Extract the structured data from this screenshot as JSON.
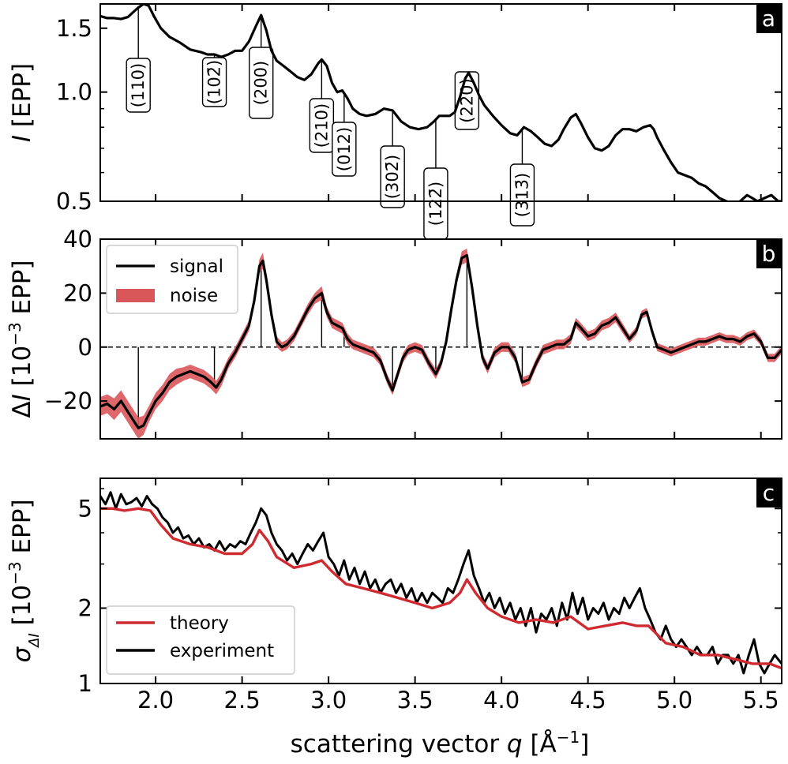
{
  "chart_data": [
    {
      "panel": "a",
      "type": "line",
      "yscale": "log",
      "xlim": [
        1.68,
        5.62
      ],
      "ylim": [
        0.5,
        1.75
      ],
      "yticks": [
        0.5,
        1.0,
        1.5
      ],
      "ytick_labels": [
        "0.5",
        "1.0",
        "1.5"
      ],
      "ylabel_italic": "I",
      "ylabel_rest": " [EPP]",
      "series": [
        {
          "name": "intensity",
          "color": "#000000",
          "x": [
            1.68,
            1.72,
            1.76,
            1.8,
            1.84,
            1.87,
            1.9,
            1.93,
            1.96,
            1.99,
            2.03,
            2.08,
            2.14,
            2.2,
            2.26,
            2.3,
            2.34,
            2.38,
            2.42,
            2.46,
            2.5,
            2.54,
            2.58,
            2.61,
            2.64,
            2.67,
            2.7,
            2.74,
            2.78,
            2.82,
            2.86,
            2.9,
            2.94,
            2.96,
            2.99,
            3.02,
            3.05,
            3.08,
            3.11,
            3.14,
            3.18,
            3.22,
            3.27,
            3.32,
            3.37,
            3.42,
            3.47,
            3.52,
            3.57,
            3.61,
            3.64,
            3.67,
            3.7,
            3.73,
            3.76,
            3.79,
            3.81,
            3.84,
            3.87,
            3.9,
            3.95,
            4.0,
            4.05,
            4.09,
            4.13,
            4.17,
            4.21,
            4.25,
            4.29,
            4.33,
            4.36,
            4.4,
            4.43,
            4.46,
            4.5,
            4.54,
            4.58,
            4.62,
            4.66,
            4.7,
            4.74,
            4.78,
            4.82,
            4.86,
            4.88,
            4.9,
            4.94,
            4.98,
            5.02,
            5.06,
            5.1,
            5.14,
            5.18,
            5.22,
            5.26,
            5.3,
            5.34,
            5.38,
            5.42,
            5.45,
            5.48,
            5.52,
            5.56,
            5.6,
            5.62
          ],
          "y": [
            1.62,
            1.6,
            1.6,
            1.59,
            1.61,
            1.66,
            1.71,
            1.75,
            1.73,
            1.62,
            1.5,
            1.42,
            1.37,
            1.31,
            1.29,
            1.27,
            1.27,
            1.25,
            1.27,
            1.3,
            1.3,
            1.38,
            1.52,
            1.63,
            1.48,
            1.3,
            1.22,
            1.18,
            1.14,
            1.1,
            1.08,
            1.12,
            1.2,
            1.23,
            1.18,
            1.06,
            1.0,
            1.01,
            0.96,
            0.9,
            0.87,
            0.86,
            0.87,
            0.9,
            0.89,
            0.83,
            0.8,
            0.79,
            0.8,
            0.83,
            0.86,
            0.86,
            0.86,
            0.88,
            0.97,
            1.09,
            1.13,
            1.06,
            0.98,
            0.92,
            0.86,
            0.81,
            0.77,
            0.76,
            0.8,
            0.78,
            0.75,
            0.72,
            0.71,
            0.74,
            0.79,
            0.85,
            0.87,
            0.82,
            0.75,
            0.7,
            0.69,
            0.71,
            0.76,
            0.79,
            0.79,
            0.78,
            0.8,
            0.81,
            0.79,
            0.75,
            0.69,
            0.64,
            0.6,
            0.59,
            0.58,
            0.56,
            0.55,
            0.53,
            0.51,
            0.5,
            0.49,
            0.5,
            0.52,
            0.51,
            0.5,
            0.51,
            0.52,
            0.5,
            0.5
          ]
        }
      ],
      "peaks": [
        {
          "label": "(110)",
          "x": 1.9
        },
        {
          "label": "(102̄)",
          "x": 2.34
        },
        {
          "label": "(200)",
          "x": 2.61
        },
        {
          "label": "(210)",
          "x": 2.96
        },
        {
          "label": "(012)",
          "x": 3.09
        },
        {
          "label": "(302̄)",
          "x": 3.37
        },
        {
          "label": "(122̄)",
          "x": 3.62
        },
        {
          "label": "(220)",
          "x": 3.8
        },
        {
          "label": "(313̄)",
          "x": 4.12
        }
      ],
      "panel_letter": "a"
    },
    {
      "panel": "b",
      "type": "line",
      "xlim": [
        1.68,
        5.62
      ],
      "ylim": [
        -34,
        40
      ],
      "yticks": [
        -20,
        0,
        20,
        40
      ],
      "ytick_labels": [
        "−20",
        "0",
        "20",
        "40"
      ],
      "ylabel_italic": "I",
      "ylabel_pre": "Δ",
      "ylabel_rest": " [10",
      "ylabel_sup": "−3",
      "ylabel_end": " EPP]",
      "zero_line": "dashed",
      "series": [
        {
          "name": "signal",
          "color": "#000000",
          "x": [
            1.68,
            1.72,
            1.76,
            1.8,
            1.84,
            1.88,
            1.9,
            1.93,
            1.96,
            2.0,
            2.04,
            2.08,
            2.12,
            2.16,
            2.2,
            2.24,
            2.28,
            2.32,
            2.35,
            2.38,
            2.42,
            2.46,
            2.5,
            2.54,
            2.57,
            2.6,
            2.62,
            2.64,
            2.67,
            2.7,
            2.73,
            2.76,
            2.8,
            2.84,
            2.88,
            2.92,
            2.96,
            2.99,
            3.02,
            3.05,
            3.08,
            3.11,
            3.14,
            3.18,
            3.22,
            3.26,
            3.3,
            3.34,
            3.37,
            3.4,
            3.43,
            3.46,
            3.5,
            3.54,
            3.58,
            3.62,
            3.65,
            3.68,
            3.71,
            3.74,
            3.77,
            3.8,
            3.83,
            3.86,
            3.89,
            3.92,
            3.96,
            4.0,
            4.04,
            4.08,
            4.12,
            4.16,
            4.2,
            4.24,
            4.28,
            4.32,
            4.36,
            4.4,
            4.43,
            4.46,
            4.5,
            4.54,
            4.58,
            4.62,
            4.66,
            4.7,
            4.74,
            4.78,
            4.81,
            4.84,
            4.87,
            4.9,
            4.94,
            4.98,
            5.02,
            5.06,
            5.1,
            5.14,
            5.18,
            5.22,
            5.26,
            5.3,
            5.34,
            5.38,
            5.42,
            5.46,
            5.5,
            5.54,
            5.58,
            5.62
          ],
          "y": [
            -22,
            -21,
            -23,
            -20,
            -24,
            -28,
            -30,
            -29,
            -25,
            -20,
            -17,
            -13,
            -11,
            -10,
            -9,
            -10,
            -11,
            -13,
            -15,
            -12,
            -6,
            -2,
            3,
            8,
            17,
            30,
            32,
            25,
            12,
            2,
            0,
            1,
            4,
            9,
            14,
            18,
            20,
            13,
            9,
            8,
            7,
            3,
            1,
            0,
            -1,
            -2,
            -5,
            -12,
            -16,
            -10,
            -4,
            -1,
            0,
            -1,
            -6,
            -10,
            -6,
            2,
            14,
            25,
            33,
            34,
            22,
            8,
            -4,
            -8,
            -2,
            0,
            0,
            -4,
            -13,
            -12,
            -6,
            -1,
            0,
            1,
            1,
            3,
            9,
            7,
            4,
            5,
            8,
            9,
            11,
            7,
            3,
            6,
            12,
            13,
            6,
            0,
            -1,
            -2,
            -1,
            0,
            1,
            2,
            2,
            3,
            4,
            3,
            3,
            2,
            4,
            5,
            2,
            -4,
            -4,
            -1
          ]
        }
      ],
      "noise_halfwidth": [
        3.5,
        3.5,
        4,
        4,
        4,
        4,
        4,
        3.5,
        3,
        3,
        3,
        3,
        3,
        2.5,
        2.5,
        2.5,
        2.5,
        2.5,
        2.5,
        2.5,
        2,
        2,
        2,
        2,
        2,
        2.5,
        3,
        2.5,
        2,
        2,
        1.8,
        1.8,
        1.8,
        1.8,
        2,
        2,
        2.5,
        2,
        2,
        2,
        2,
        2,
        1.8,
        1.8,
        1.8,
        1.8,
        1.8,
        1.8,
        1.8,
        1.8,
        1.8,
        1.8,
        1.8,
        1.8,
        1.8,
        1.8,
        1.8,
        1.8,
        1.8,
        2,
        2.5,
        2.5,
        2,
        1.8,
        1.8,
        1.8,
        1.8,
        1.8,
        1.8,
        1.8,
        1.8,
        1.8,
        1.8,
        1.8,
        1.8,
        1.8,
        1.8,
        1.8,
        1.8,
        1.8,
        1.8,
        1.8,
        1.8,
        1.8,
        1.8,
        1.8,
        1.5,
        1.5,
        1.5,
        1.5,
        1.5,
        1.5,
        1.5,
        1.5,
        1.5,
        1.5,
        1.5,
        1.5,
        1.5,
        1.5,
        1.5,
        1.5,
        1.5,
        1.5,
        1.5,
        1.5,
        1.5,
        1.5,
        1.5,
        1.5
      ],
      "noise_color": "#d9575b",
      "stems": [
        {
          "x": 1.9,
          "y": -30
        },
        {
          "x": 2.34,
          "y": -15
        },
        {
          "x": 2.61,
          "y": 32
        },
        {
          "x": 2.96,
          "y": 20
        },
        {
          "x": 3.09,
          "y": 7
        },
        {
          "x": 3.37,
          "y": -16
        },
        {
          "x": 3.62,
          "y": -10
        },
        {
          "x": 3.8,
          "y": 34
        },
        {
          "x": 4.12,
          "y": -13
        }
      ],
      "legend": {
        "placement": "upper-left",
        "entries": [
          "signal",
          "noise"
        ]
      },
      "panel_letter": "b"
    },
    {
      "panel": "c",
      "type": "line",
      "yscale": "log",
      "xlim": [
        1.68,
        5.62
      ],
      "ylim": [
        1.0,
        6.6
      ],
      "yticks": [
        1,
        2,
        5
      ],
      "ytick_labels": [
        "1",
        "2",
        "5"
      ],
      "ylabel_sigma": "σ",
      "ylabel_sub": "ΔI",
      "ylabel_rest": " [10",
      "ylabel_sup": "−3",
      "ylabel_end": " EPP]",
      "series": [
        {
          "name": "theory",
          "color": "#cf2a2f",
          "x": [
            1.68,
            1.75,
            1.82,
            1.9,
            1.97,
            2.03,
            2.1,
            2.2,
            2.3,
            2.4,
            2.5,
            2.56,
            2.6,
            2.65,
            2.7,
            2.8,
            2.9,
            2.96,
            3.02,
            3.1,
            3.2,
            3.3,
            3.4,
            3.5,
            3.6,
            3.7,
            3.76,
            3.8,
            3.85,
            3.92,
            4.0,
            4.1,
            4.2,
            4.3,
            4.4,
            4.5,
            4.6,
            4.7,
            4.78,
            4.85,
            4.95,
            5.05,
            5.15,
            5.25,
            5.35,
            5.45,
            5.55,
            5.62
          ],
          "y": [
            5.0,
            5.0,
            4.9,
            5.0,
            4.9,
            4.3,
            3.8,
            3.6,
            3.5,
            3.3,
            3.3,
            3.6,
            4.1,
            3.7,
            3.2,
            2.9,
            3.0,
            3.1,
            2.8,
            2.5,
            2.4,
            2.3,
            2.2,
            2.1,
            2.0,
            2.1,
            2.3,
            2.6,
            2.3,
            2.0,
            1.85,
            1.75,
            1.8,
            1.75,
            1.85,
            1.65,
            1.7,
            1.75,
            1.7,
            1.7,
            1.45,
            1.4,
            1.3,
            1.3,
            1.25,
            1.2,
            1.2,
            1.15
          ]
        },
        {
          "name": "experiment",
          "color": "#000000",
          "x": [
            1.68,
            1.71,
            1.74,
            1.77,
            1.8,
            1.83,
            1.86,
            1.89,
            1.92,
            1.95,
            1.98,
            2.01,
            2.04,
            2.07,
            2.1,
            2.13,
            2.16,
            2.19,
            2.22,
            2.25,
            2.28,
            2.31,
            2.34,
            2.37,
            2.4,
            2.43,
            2.46,
            2.49,
            2.52,
            2.55,
            2.58,
            2.61,
            2.64,
            2.67,
            2.7,
            2.73,
            2.76,
            2.79,
            2.82,
            2.85,
            2.88,
            2.91,
            2.94,
            2.97,
            3.0,
            3.03,
            3.06,
            3.09,
            3.12,
            3.15,
            3.18,
            3.21,
            3.24,
            3.27,
            3.3,
            3.33,
            3.36,
            3.39,
            3.42,
            3.45,
            3.48,
            3.51,
            3.54,
            3.57,
            3.6,
            3.63,
            3.66,
            3.69,
            3.72,
            3.75,
            3.78,
            3.81,
            3.84,
            3.87,
            3.9,
            3.93,
            3.96,
            3.99,
            4.02,
            4.05,
            4.08,
            4.11,
            4.14,
            4.17,
            4.2,
            4.23,
            4.26,
            4.29,
            4.32,
            4.35,
            4.38,
            4.41,
            4.44,
            4.47,
            4.5,
            4.53,
            4.56,
            4.59,
            4.62,
            4.65,
            4.68,
            4.71,
            4.74,
            4.77,
            4.8,
            4.83,
            4.86,
            4.89,
            4.92,
            4.95,
            4.98,
            5.01,
            5.04,
            5.07,
            5.1,
            5.13,
            5.16,
            5.19,
            5.22,
            5.25,
            5.28,
            5.31,
            5.34,
            5.37,
            5.4,
            5.43,
            5.46,
            5.49,
            5.52,
            5.55,
            5.58,
            5.62
          ],
          "y": [
            5.6,
            5.2,
            5.8,
            5.0,
            5.7,
            5.2,
            5.3,
            5.5,
            5.1,
            5.6,
            5.2,
            5.0,
            4.6,
            4.4,
            4.0,
            4.2,
            3.8,
            3.9,
            3.6,
            3.8,
            3.5,
            3.6,
            3.4,
            3.7,
            3.4,
            3.6,
            3.5,
            3.7,
            3.6,
            4.0,
            4.4,
            5.0,
            4.7,
            4.0,
            3.6,
            3.4,
            3.1,
            3.3,
            3.0,
            3.3,
            3.6,
            3.4,
            3.7,
            4.0,
            3.2,
            3.0,
            2.7,
            3.1,
            2.6,
            2.9,
            2.5,
            2.8,
            2.4,
            2.6,
            2.3,
            2.5,
            2.6,
            2.3,
            2.5,
            2.2,
            2.4,
            2.1,
            2.3,
            2.1,
            2.3,
            2.2,
            2.1,
            2.4,
            2.3,
            2.6,
            3.0,
            3.4,
            2.7,
            2.4,
            2.1,
            2.3,
            2.0,
            2.2,
            1.9,
            2.1,
            1.8,
            2.0,
            1.7,
            2.0,
            1.6,
            1.9,
            1.8,
            2.0,
            1.7,
            2.1,
            1.8,
            2.3,
            1.9,
            2.2,
            1.8,
            2.0,
            1.9,
            2.1,
            1.8,
            2.0,
            1.9,
            2.2,
            2.0,
            2.2,
            2.4,
            2.0,
            1.8,
            1.6,
            1.5,
            1.7,
            1.5,
            1.4,
            1.5,
            1.4,
            1.3,
            1.4,
            1.3,
            1.3,
            1.4,
            1.2,
            1.3,
            1.3,
            1.2,
            1.3,
            1.1,
            1.3,
            1.5,
            1.2,
            1.1,
            1.2,
            1.3,
            1.2
          ]
        }
      ],
      "legend": {
        "placement": "lower-left",
        "entries": [
          "theory",
          "experiment"
        ]
      },
      "panel_letter": "c"
    }
  ],
  "shared": {
    "xticks": [
      2.0,
      2.5,
      3.0,
      3.5,
      4.0,
      4.5,
      5.0,
      5.5
    ],
    "xtick_labels": [
      "2.0",
      "2.5",
      "3.0",
      "3.5",
      "4.0",
      "4.5",
      "5.0",
      "5.5"
    ],
    "xlabel_pre": "scattering vector ",
    "xlabel_italic": "q",
    "xlabel_rest": " [Å",
    "xlabel_sup": "−1",
    "xlabel_end": "]"
  }
}
